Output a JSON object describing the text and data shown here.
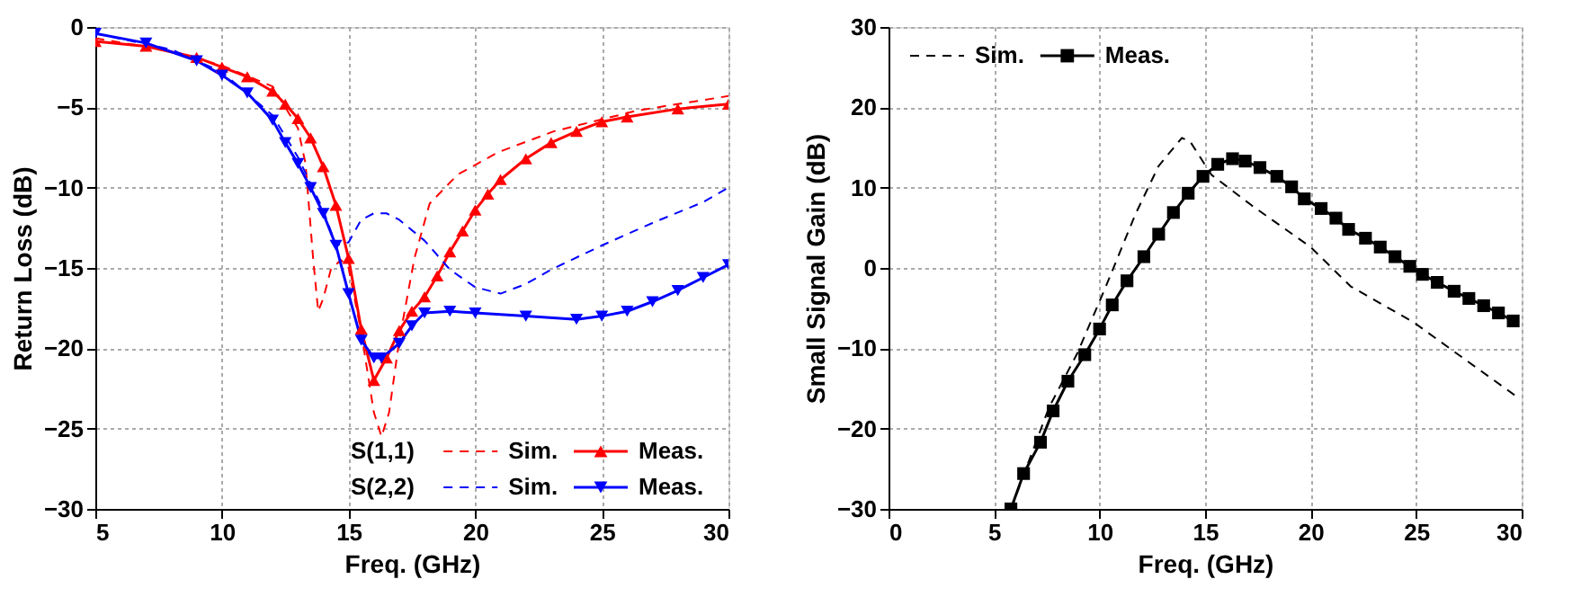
{
  "chart_data": [
    {
      "type": "line",
      "xlabel": "Freq. (GHz)",
      "ylabel": "Return Loss (dB)",
      "xlim": [
        5,
        30
      ],
      "ylim": [
        -30,
        0
      ],
      "xticks": [
        5,
        10,
        15,
        20,
        25,
        30
      ],
      "yticks": [
        0,
        -5,
        -10,
        -15,
        -20,
        -25,
        -30
      ],
      "grid": true,
      "legend": "bottom right",
      "annotations": [
        "S(1,1)",
        "S(2,2)"
      ],
      "series": [
        {
          "name": "Sim.",
          "color": "#ff0000",
          "line_style": "dashed",
          "marker": "none",
          "x": [
            5,
            8,
            10,
            12,
            13,
            13.3,
            13.6,
            13.8,
            14,
            14.3,
            14.7,
            15,
            15.5,
            16,
            16.3,
            16.6,
            17,
            17.6,
            18.2,
            19.3,
            20.9,
            23.1,
            26.4,
            30
          ],
          "values": [
            -0.7,
            -1.5,
            -2.4,
            -3.7,
            -6.3,
            -8.5,
            -14.4,
            -17.7,
            -16.9,
            -15.1,
            -14.5,
            -15,
            -19,
            -24,
            -25.5,
            -24,
            -19.5,
            -14.4,
            -11,
            -9.2,
            -7.8,
            -6.5,
            -5.2,
            -4.3
          ]
        },
        {
          "name": "Meas.",
          "color": "#ff0000",
          "line_style": "solid",
          "marker": "triangle",
          "x": [
            5,
            7,
            9,
            10,
            11,
            12,
            12.5,
            13,
            13.5,
            14,
            14.5,
            15,
            15.5,
            16,
            16.5,
            17,
            17.5,
            18,
            18.5,
            19,
            19.5,
            20,
            20.5,
            21,
            22,
            23,
            24,
            25,
            26,
            28,
            30
          ],
          "values": [
            -0.9,
            -1.2,
            -1.9,
            -2.5,
            -3.1,
            -4,
            -4.8,
            -5.7,
            -6.9,
            -8.7,
            -11.1,
            -14.4,
            -18.8,
            -22,
            -20.6,
            -18.9,
            -17.7,
            -16.8,
            -15.5,
            -14,
            -12.7,
            -11.4,
            -10.4,
            -9.5,
            -8.2,
            -7.2,
            -6.5,
            -5.9,
            -5.6,
            -5.1,
            -4.8
          ]
        },
        {
          "name": "Sim.",
          "color": "#0000ff",
          "line_style": "dashed",
          "marker": "none",
          "x": [
            5,
            8,
            10,
            12,
            13,
            14,
            14.5,
            15,
            15.5,
            16,
            16.5,
            17,
            18,
            19,
            20,
            21,
            22,
            23,
            25,
            27,
            29,
            30
          ],
          "values": [
            -0.4,
            -1.4,
            -2.8,
            -5.5,
            -8.1,
            -11.4,
            -13.6,
            -13.4,
            -12,
            -11.6,
            -11.6,
            -12,
            -13.3,
            -15.1,
            -16.2,
            -16.6,
            -16,
            -15.1,
            -13.6,
            -12.2,
            -10.9,
            -10
          ]
        },
        {
          "name": "Meas.",
          "color": "#0000ff",
          "line_style": "solid",
          "marker": "triangle-down",
          "x": [
            5,
            7,
            9,
            10,
            11,
            12,
            12.5,
            13,
            13.5,
            14,
            14.5,
            15,
            15.5,
            16,
            16.3,
            17,
            17.5,
            18,
            19,
            20,
            22,
            24,
            25,
            26,
            27,
            28,
            29,
            30
          ],
          "values": [
            -0.4,
            -1,
            -2.1,
            -3,
            -4.1,
            -5.8,
            -7.2,
            -8.5,
            -10,
            -11.6,
            -13.6,
            -16.6,
            -19.5,
            -20.6,
            -20.6,
            -19.7,
            -18.6,
            -17.8,
            -17.7,
            -17.8,
            -18,
            -18.2,
            -18,
            -17.7,
            -17.1,
            -16.4,
            -15.6,
            -14.8
          ]
        }
      ]
    },
    {
      "type": "line",
      "xlabel": "Freq. (GHz)",
      "ylabel": "Small Signal Gain (dB)",
      "xlim": [
        0,
        30
      ],
      "ylim": [
        -30,
        30
      ],
      "xticks": [
        0,
        5,
        10,
        15,
        20,
        25,
        30
      ],
      "yticks": [
        -30,
        -20,
        -10,
        0,
        10,
        20,
        30
      ],
      "grid": true,
      "legend": "top left",
      "series": [
        {
          "name": "Sim.",
          "color": "#000000",
          "line_style": "dashed",
          "marker": "none",
          "x": [
            5.8,
            7.6,
            8.95,
            10.3,
            11.7,
            12.8,
            13.9,
            14.3,
            15.3,
            17.2,
            20,
            21.9,
            24.9,
            26.9,
            29.7
          ],
          "values": [
            -30,
            -17.4,
            -10.6,
            -2.3,
            6.7,
            12.7,
            16.2,
            15.7,
            11.6,
            7.8,
            2.6,
            -2.3,
            -6.8,
            -10.6,
            -15.9
          ]
        },
        {
          "name": "Meas.",
          "color": "#000000",
          "line_style": "solid",
          "marker": "square",
          "x": [
            5.8,
            6.4,
            7.2,
            7.8,
            8.5,
            9.3,
            10,
            10.6,
            11.3,
            12.1,
            12.8,
            13.5,
            14.2,
            14.9,
            15.6,
            16.3,
            16.9,
            17.6,
            18.4,
            19.1,
            19.7,
            20.5,
            21.2,
            21.8,
            22.6,
            23.3,
            24,
            24.7,
            25.3,
            26,
            26.8,
            27.5,
            28.2,
            28.9,
            29.6
          ],
          "values": [
            -30,
            -25.6,
            -21.7,
            -17.8,
            -14.1,
            -10.8,
            -7.6,
            -4.6,
            -1.6,
            1.4,
            4.2,
            6.9,
            9.3,
            11.4,
            12.9,
            13.6,
            13.3,
            12.5,
            11.4,
            10.1,
            8.6,
            7.4,
            6.2,
            4.8,
            3.7,
            2.6,
            1.4,
            0.2,
            -0.8,
            -1.8,
            -2.9,
            -3.8,
            -4.7,
            -5.6,
            -6.6
          ]
        }
      ]
    }
  ]
}
